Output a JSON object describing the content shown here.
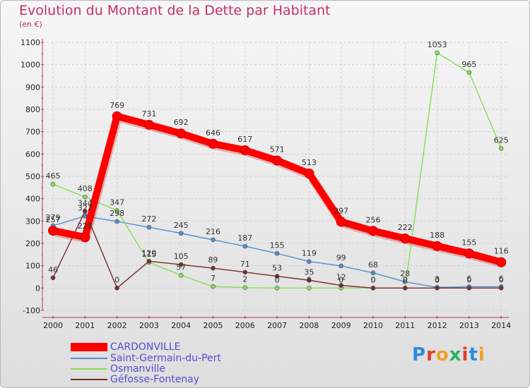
{
  "title": "Evolution du Montant de la Dette par Habitant",
  "subtitle": "(en €)",
  "chart_data": {
    "type": "line",
    "title": "Evolution du Montant de la Dette par Habitant",
    "subtitle": "(en €)",
    "x": [
      "2000",
      "2001",
      "2002",
      "2003",
      "2004",
      "2005",
      "2006",
      "2007",
      "2008",
      "2009",
      "2010",
      "2011",
      "2012",
      "2013",
      "2014"
    ],
    "yticks": [
      "-100",
      "0",
      "100",
      "200",
      "300",
      "400",
      "500",
      "600",
      "700",
      "800",
      "900",
      "1000",
      "1100"
    ],
    "ylim": [
      -100,
      1100
    ],
    "grid": true,
    "legend_position": "bottom-left",
    "series": [
      {
        "name": "CARDONVILLE",
        "color": "#ff0000",
        "values": [
          257,
          228,
          769,
          731,
          692,
          646,
          617,
          571,
          513,
          297,
          256,
          222,
          188,
          155,
          116
        ],
        "labels": [
          "257",
          "228",
          "769",
          "731",
          "692",
          "646",
          "617",
          "571",
          "513",
          "297",
          "256",
          "222",
          "188",
          "155",
          "116"
        ]
      },
      {
        "name": "Saint-Germain-du-Pert",
        "color": "#4f8fd0",
        "values": [
          279,
          322,
          298,
          272,
          245,
          216,
          187,
          155,
          119,
          99,
          68,
          28,
          3,
          6,
          6
        ],
        "labels": [
          "279",
          "322",
          "298",
          "272",
          "245",
          "216",
          "187",
          "155",
          "119",
          "99",
          "68",
          "28",
          "3",
          "6",
          "6"
        ]
      },
      {
        "name": "Osmanville",
        "color": "#88dd55",
        "values": [
          465,
          408,
          347,
          115,
          57,
          7,
          2,
          0,
          0,
          0,
          0,
          0,
          1053,
          965,
          625
        ],
        "labels": [
          "465",
          "408",
          "347",
          "115",
          "57",
          "7",
          "2",
          "0",
          "0",
          "0",
          "0",
          "0",
          "1053",
          "965",
          "625"
        ]
      },
      {
        "name": "Géfosse-Fontenay",
        "color": "#7a2a2a",
        "values": [
          46,
          344,
          0,
          120,
          105,
          89,
          71,
          53,
          35,
          12,
          0,
          0,
          0,
          0,
          0
        ],
        "labels": [
          "46",
          "344",
          "0",
          "120",
          "105",
          "89",
          "71",
          "53",
          "35",
          "12",
          "0",
          "0",
          "0",
          "0",
          "0"
        ]
      }
    ]
  },
  "logo": {
    "text": "Proxiti",
    "colors": [
      "#2a8de0",
      "#e0402a",
      "#f0a020",
      "#2ab060",
      "#e0402a",
      "#2a8de0",
      "#f0a020"
    ]
  }
}
